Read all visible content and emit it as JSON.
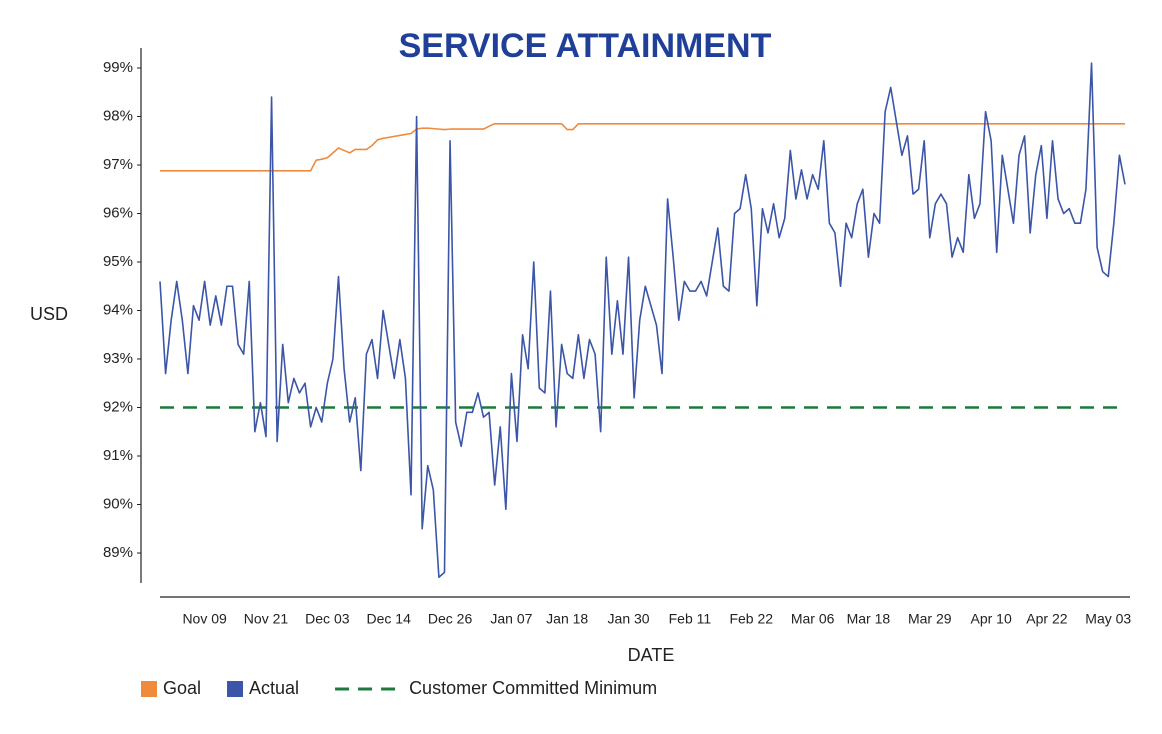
{
  "chart_data": {
    "type": "line",
    "title": "SERVICE ATTAINMENT",
    "x_label": "DATE",
    "y_label": "USD",
    "categories": [
      null,
      null,
      null,
      null,
      null,
      null,
      null,
      null,
      "Nov 09",
      null,
      null,
      null,
      null,
      null,
      null,
      null,
      null,
      null,
      null,
      "Nov 21",
      null,
      null,
      null,
      null,
      null,
      null,
      null,
      null,
      null,
      null,
      "Dec 03",
      null,
      null,
      null,
      null,
      null,
      null,
      null,
      null,
      null,
      null,
      "Dec 14",
      null,
      null,
      null,
      null,
      null,
      null,
      null,
      null,
      null,
      null,
      "Dec 26",
      null,
      null,
      null,
      null,
      null,
      null,
      null,
      null,
      null,
      null,
      "Jan 07",
      null,
      null,
      null,
      null,
      null,
      null,
      null,
      null,
      null,
      "Jan 18",
      null,
      null,
      null,
      null,
      null,
      null,
      null,
      null,
      null,
      null,
      "Jan 30",
      null,
      null,
      null,
      null,
      null,
      null,
      null,
      null,
      null,
      null,
      "Feb 11",
      null,
      null,
      null,
      null,
      null,
      null,
      null,
      null,
      null,
      null,
      "Feb 22",
      null,
      null,
      null,
      null,
      null,
      null,
      null,
      null,
      null,
      null,
      "Mar 06",
      null,
      null,
      null,
      null,
      null,
      null,
      null,
      null,
      null,
      "Mar 18",
      null,
      null,
      null,
      null,
      null,
      null,
      null,
      null,
      null,
      null,
      "Mar 29",
      null,
      null,
      null,
      null,
      null,
      null,
      null,
      null,
      null,
      null,
      "Apr 10",
      null,
      null,
      null,
      null,
      null,
      null,
      null,
      null,
      null,
      "Apr 22",
      null,
      null,
      null,
      null,
      null,
      null,
      null,
      null,
      null,
      null,
      "May 03",
      null,
      null,
      null
    ],
    "series": [
      {
        "name": "Goal",
        "color": "#f08a3c",
        "values": [
          96.88,
          96.88,
          96.88,
          96.88,
          96.88,
          96.88,
          96.88,
          96.88,
          96.88,
          96.88,
          96.88,
          96.88,
          96.88,
          96.88,
          96.88,
          96.88,
          96.88,
          96.88,
          96.88,
          96.88,
          96.88,
          96.88,
          96.88,
          96.88,
          96.88,
          96.88,
          96.88,
          96.88,
          97.1,
          97.12,
          97.15,
          97.25,
          97.35,
          97.3,
          97.25,
          97.32,
          97.32,
          97.32,
          97.4,
          97.52,
          97.55,
          97.57,
          97.59,
          97.61,
          97.63,
          97.65,
          97.74,
          97.76,
          97.76,
          97.75,
          97.74,
          97.73,
          97.74,
          97.74,
          97.74,
          97.74,
          97.74,
          97.74,
          97.74,
          97.8,
          97.85,
          97.85,
          97.85,
          97.85,
          97.85,
          97.85,
          97.85,
          97.85,
          97.85,
          97.85,
          97.85,
          97.85,
          97.85,
          97.73,
          97.73,
          97.85,
          97.85,
          97.85,
          97.85,
          97.85,
          97.85,
          97.85,
          97.85,
          97.85,
          97.85,
          97.85,
          97.85,
          97.85,
          97.85,
          97.85,
          97.85,
          97.85,
          97.85,
          97.85,
          97.85,
          97.85,
          97.85,
          97.85,
          97.85,
          97.85,
          97.85,
          97.85,
          97.85,
          97.85,
          97.85,
          97.85,
          97.85,
          97.85,
          97.85,
          97.85,
          97.85,
          97.85,
          97.85,
          97.85,
          97.85,
          97.85,
          97.85,
          97.85,
          97.85,
          97.85,
          97.85,
          97.85,
          97.85,
          97.85,
          97.85,
          97.85,
          97.85,
          97.85,
          97.85,
          97.85,
          97.85,
          97.85,
          97.85,
          97.85,
          97.85,
          97.85,
          97.85,
          97.85,
          97.85,
          97.85,
          97.85,
          97.85,
          97.85,
          97.85,
          97.85,
          97.85,
          97.85,
          97.85,
          97.85,
          97.85,
          97.85,
          97.85,
          97.85,
          97.85,
          97.85,
          97.85,
          97.85,
          97.85,
          97.85,
          97.85,
          97.85,
          97.85,
          97.85,
          97.85,
          97.85,
          97.85,
          97.85,
          97.85,
          97.85,
          97.85,
          97.85,
          97.85,
          97.85,
          97.85
        ]
      },
      {
        "name": "Actual",
        "color": "#3b55a8",
        "values": [
          94.6,
          92.7,
          93.8,
          94.6,
          93.8,
          92.7,
          94.1,
          93.8,
          94.6,
          93.7,
          94.3,
          93.7,
          94.5,
          94.5,
          93.3,
          93.1,
          94.6,
          91.5,
          92.1,
          91.4,
          98.4,
          91.3,
          93.3,
          92.1,
          92.6,
          92.3,
          92.5,
          91.6,
          92,
          91.7,
          92.5,
          93,
          94.7,
          92.8,
          91.7,
          92.2,
          90.7,
          93.1,
          93.4,
          92.6,
          94,
          93.3,
          92.6,
          93.4,
          92.6,
          90.2,
          98,
          89.5,
          90.8,
          90.3,
          88.5,
          88.6,
          97.5,
          91.7,
          91.2,
          91.9,
          91.9,
          92.3,
          91.8,
          91.9,
          90.4,
          91.6,
          89.9,
          92.7,
          91.3,
          93.5,
          92.8,
          95,
          92.4,
          92.3,
          94.4,
          91.6,
          93.3,
          92.7,
          92.6,
          93.5,
          92.6,
          93.4,
          93.1,
          91.5,
          95.1,
          93.1,
          94.2,
          93.1,
          95.1,
          92.2,
          93.8,
          94.5,
          94.1,
          93.7,
          92.7,
          96.3,
          95.1,
          93.8,
          94.6,
          94.4,
          94.4,
          94.6,
          94.3,
          95,
          95.7,
          94.5,
          94.4,
          96,
          96.1,
          96.8,
          96.1,
          94.1,
          96.1,
          95.6,
          96.2,
          95.5,
          95.9,
          97.3,
          96.3,
          96.9,
          96.3,
          96.8,
          96.5,
          97.5,
          95.8,
          95.6,
          94.5,
          95.8,
          95.5,
          96.2,
          96.5,
          95.1,
          96,
          95.8,
          98.1,
          98.6,
          97.9,
          97.2,
          97.6,
          96.4,
          96.5,
          97.5,
          95.5,
          96.2,
          96.4,
          96.2,
          95.1,
          95.5,
          95.2,
          96.8,
          95.9,
          96.2,
          98.1,
          97.5,
          95.2,
          97.2,
          96.5,
          95.8,
          97.2,
          97.6,
          95.6,
          96.8,
          97.4,
          95.9,
          97.5,
          96.3,
          96,
          96.1,
          95.8,
          95.8,
          96.5,
          99.1,
          95.3,
          94.8,
          94.7,
          95.8,
          97.2,
          96.6
        ]
      }
    ],
    "reference_lines": [
      {
        "name": "Customer Committed Minimum",
        "value": 92,
        "color": "#1e7a3c",
        "dashed": true
      }
    ],
    "ylim": [
      88.4,
      99.4
    ],
    "yticks": [
      {
        "value": 89,
        "label": "89%"
      },
      {
        "value": 90,
        "label": "90%"
      },
      {
        "value": 91,
        "label": "91%"
      },
      {
        "value": 92,
        "label": "92%"
      },
      {
        "value": 93,
        "label": "93%"
      },
      {
        "value": 94,
        "label": "94%"
      },
      {
        "value": 95,
        "label": "95%"
      },
      {
        "value": 96,
        "label": "96%"
      },
      {
        "value": 97,
        "label": "97%"
      },
      {
        "value": 98,
        "label": "98%"
      },
      {
        "value": 99,
        "label": "99%"
      }
    ],
    "grid": false,
    "legend": "bottom-left"
  }
}
